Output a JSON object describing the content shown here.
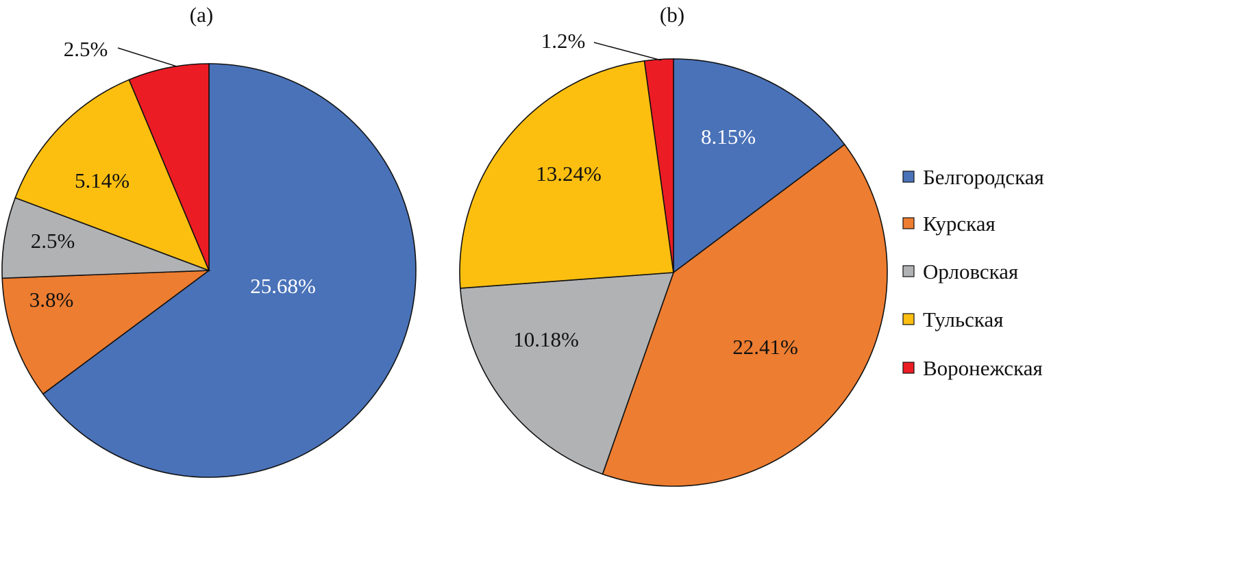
{
  "chart_data": [
    {
      "type": "pie",
      "title": "(a)",
      "categories": [
        "Белгородская",
        "Курская",
        "Орловская",
        "Тульская",
        "Воронежская"
      ],
      "values": [
        25.68,
        3.8,
        2.5,
        5.14,
        2.5
      ],
      "labels": [
        "25.68%",
        "3.8%",
        "2.5%",
        "5.14%",
        "2.5%"
      ]
    },
    {
      "type": "pie",
      "title": "(b)",
      "categories": [
        "Белгородская",
        "Курская",
        "Орловская",
        "Тульская",
        "Воронежская"
      ],
      "values": [
        8.15,
        22.41,
        10.18,
        13.24,
        1.2
      ],
      "labels": [
        "8.15%",
        "22.41%",
        "10.18%",
        "13.24%",
        "1.2%"
      ]
    }
  ],
  "legend": {
    "placement": "right",
    "items": [
      "Белгородская",
      "Курская",
      "Орловская",
      "Тульская",
      "Воронежская"
    ]
  },
  "colors": [
    "#4a72b8",
    "#ed7d31",
    "#b1b2b4",
    "#fcbf10",
    "#ec1c24"
  ]
}
